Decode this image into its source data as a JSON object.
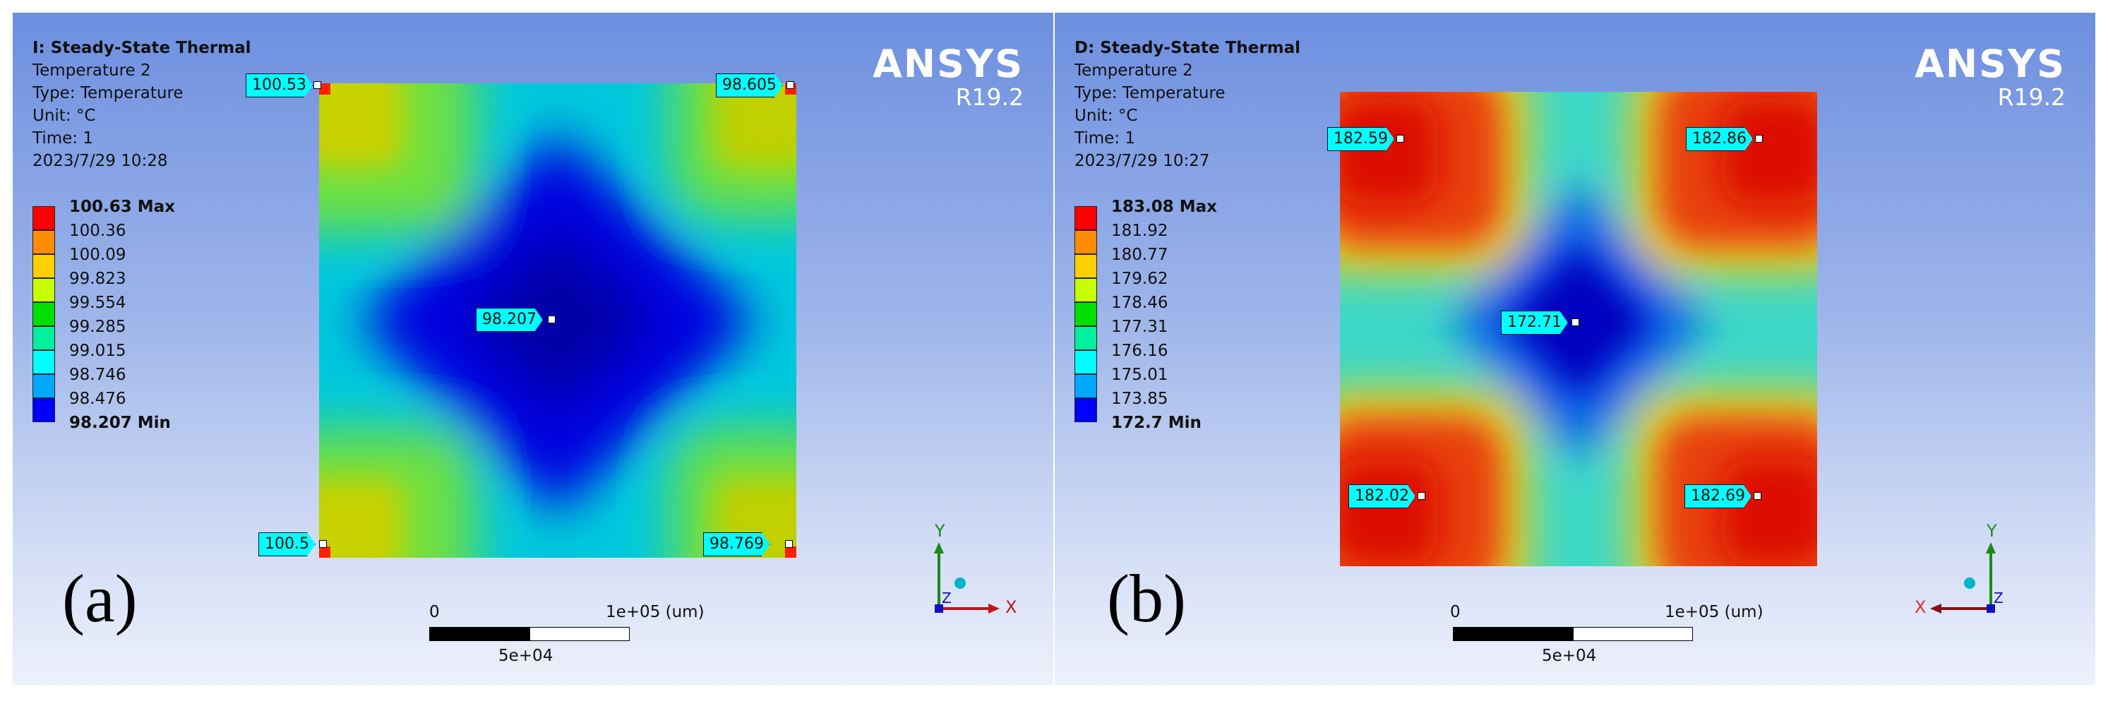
{
  "panels": [
    {
      "id": "a",
      "figure_label": "(a)",
      "info": {
        "title": "I: Steady-State Thermal",
        "result": "Temperature 2",
        "type": "Type: Temperature",
        "unit": "Unit: °C",
        "time": "Time: 1",
        "timestamp": "2023/7/29 10:28"
      },
      "legend": [
        "100.63 Max",
        "100.36",
        "100.09",
        "99.823",
        "99.554",
        "99.285",
        "99.015",
        "98.746",
        "98.476",
        "98.207 Min"
      ],
      "logo": {
        "brand": "ANSYS",
        "version": "R19.2"
      },
      "probes": {
        "tl": "100.53",
        "tr": "98.605",
        "center": "98.207",
        "bl": "100.5",
        "br": "98.769"
      },
      "scale": {
        "zero": "0",
        "end": "1e+05 (um)",
        "mid": "5e+04"
      }
    },
    {
      "id": "b",
      "figure_label": "(b)",
      "info": {
        "title": "D: Steady-State Thermal",
        "result": "Temperature 2",
        "type": "Type: Temperature",
        "unit": "Unit: °C",
        "time": "Time: 1",
        "timestamp": "2023/7/29 10:27"
      },
      "legend": [
        "183.08 Max",
        "181.92",
        "180.77",
        "179.62",
        "178.46",
        "177.31",
        "176.16",
        "175.01",
        "173.85",
        "172.7 Min"
      ],
      "logo": {
        "brand": "ANSYS",
        "version": "R19.2"
      },
      "probes": {
        "tl": "182.59",
        "tr": "182.86",
        "center": "172.71",
        "bl": "182.02",
        "br": "182.69"
      },
      "scale": {
        "zero": "0",
        "end": "1e+05 (um)",
        "mid": "5e+04"
      }
    }
  ],
  "legend_colors": [
    "#ff0000",
    "#ff8c00",
    "#ffd000",
    "#ffff00",
    "#a0ff00",
    "#00e000",
    "#00ffa0",
    "#00ffff",
    "#00a0ff",
    "#0000ff"
  ],
  "triad_labels": {
    "x": "X",
    "y": "Y",
    "z": "Z"
  }
}
